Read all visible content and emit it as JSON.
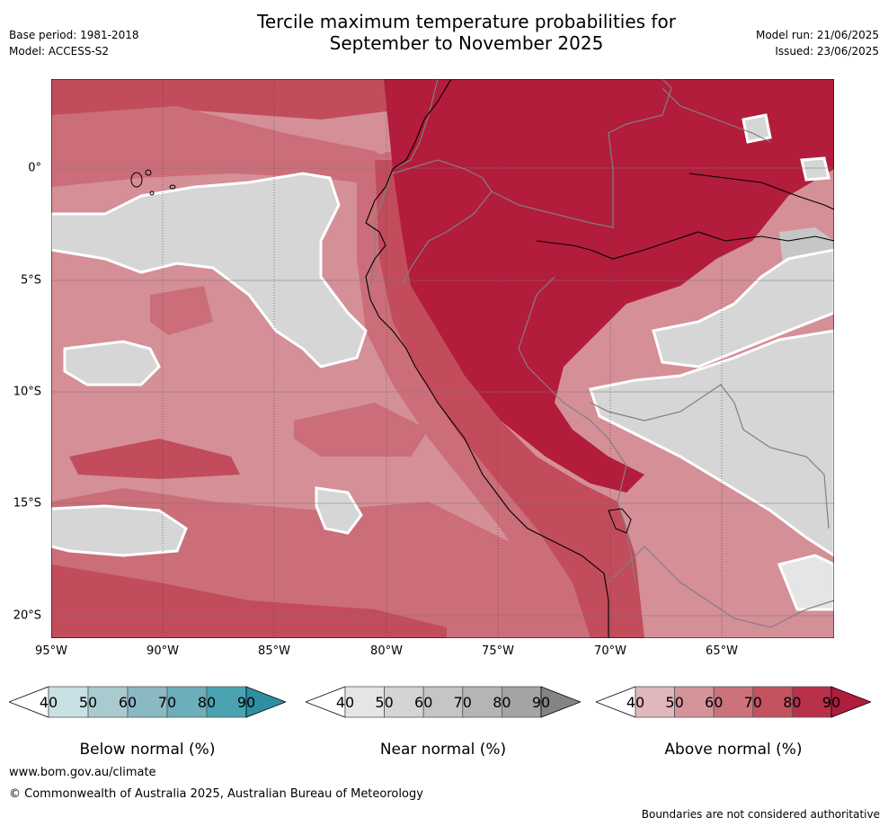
{
  "header": {
    "base_period": "Base period: 1981-2018",
    "model": "Model: ACCESS-S2",
    "title_line1": "Tercile maximum temperature probabilities for",
    "title_line2": "September to November 2025",
    "model_run": "Model run: 21/06/2025",
    "issued": "Issued: 23/06/2025"
  },
  "map": {
    "lon_labels": [
      "95°W",
      "90°W",
      "85°W",
      "80°W",
      "75°W",
      "70°W",
      "65°W"
    ],
    "lat_labels": [
      "0°",
      "5°S",
      "10°S",
      "15°S",
      "20°S"
    ],
    "colors": {
      "above_50": "#e0b7bb",
      "above_60": "#d58f97",
      "above_70": "#cb6e79",
      "above_80": "#c24c5c",
      "above_90": "#b31c3b",
      "near_40": "#e5e5e5",
      "near_50": "#d6d6d6",
      "near_60": "#c6c6c6"
    }
  },
  "legends": [
    {
      "title": "Below normal (%)",
      "ticks": [
        "40",
        "50",
        "60",
        "70",
        "80",
        "90"
      ],
      "colors": [
        "#ffffff",
        "#c8e1e4",
        "#a9cbd0",
        "#8ab8c3",
        "#6caeb9",
        "#49a3b1",
        "#2e8fa2"
      ]
    },
    {
      "title": "Near normal (%)",
      "ticks": [
        "40",
        "50",
        "60",
        "70",
        "80",
        "90"
      ],
      "colors": [
        "#ffffff",
        "#e5e5e5",
        "#d4d4d4",
        "#c5c5c5",
        "#b5b5b5",
        "#a4a4a4",
        "#848484"
      ]
    },
    {
      "title": "Above normal (%)",
      "ticks": [
        "40",
        "50",
        "60",
        "70",
        "80",
        "90"
      ],
      "colors": [
        "#ffffff",
        "#e0b7bb",
        "#d5939a",
        "#cc727c",
        "#c3535f",
        "#b8304a",
        "#b01c3c"
      ]
    }
  ],
  "footer": {
    "url": "www.bom.gov.au/climate",
    "copyright": "© Commonwealth of Australia 2025, Australian Bureau of Meteorology",
    "disclaimer": "Boundaries are not considered authoritative"
  }
}
